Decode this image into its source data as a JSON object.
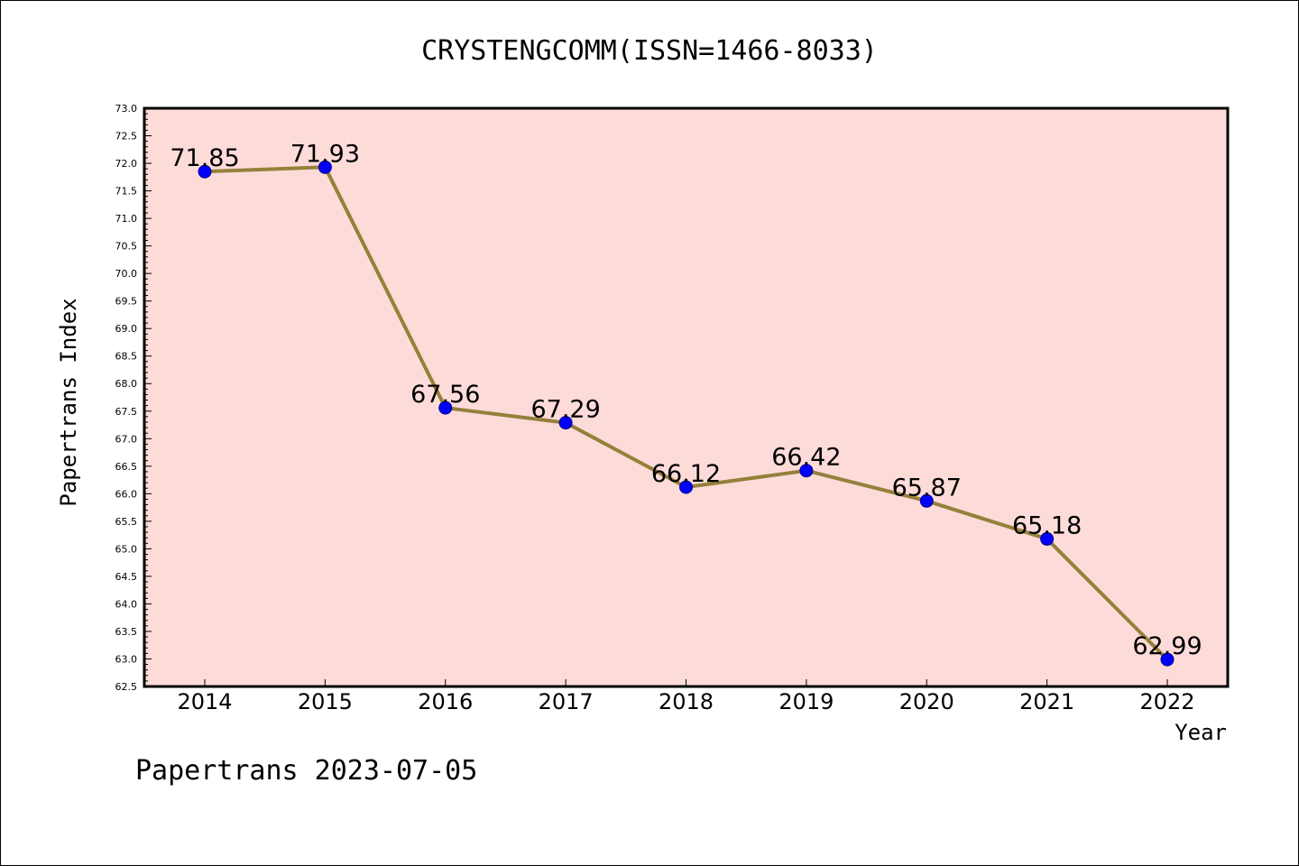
{
  "chart_data": {
    "type": "line",
    "title": "CRYSTENGCOMM(ISSN=1466-8033)",
    "xlabel": "Year",
    "ylabel": "Papertrans Index",
    "categories": [
      "2014",
      "2015",
      "2016",
      "2017",
      "2018",
      "2019",
      "2020",
      "2021",
      "2022"
    ],
    "series": [
      {
        "values": [
          71.85,
          71.93,
          67.56,
          67.29,
          66.12,
          66.42,
          65.87,
          65.18,
          62.99
        ]
      }
    ],
    "data_labels": [
      "71.85",
      "71.93",
      "67.56",
      "67.29",
      "66.12",
      "66.42",
      "65.87",
      "65.18",
      "62.99"
    ],
    "ylim": [
      62.5,
      73.0
    ],
    "yticks": [
      "62.5",
      "63.0",
      "63.5",
      "64.0",
      "64.5",
      "65.0",
      "65.5",
      "66.0",
      "66.5",
      "67.0",
      "67.5",
      "68.0",
      "68.5",
      "69.0",
      "69.5",
      "70.0",
      "70.5",
      "71.0",
      "71.5",
      "72.0",
      "72.5",
      "73.0"
    ],
    "grid": false,
    "legend": "none",
    "colors": {
      "plot_background": "#fddbd9",
      "line": "#95803a",
      "marker": "#0000ff"
    }
  },
  "footer": "Papertrans 2023-07-05"
}
